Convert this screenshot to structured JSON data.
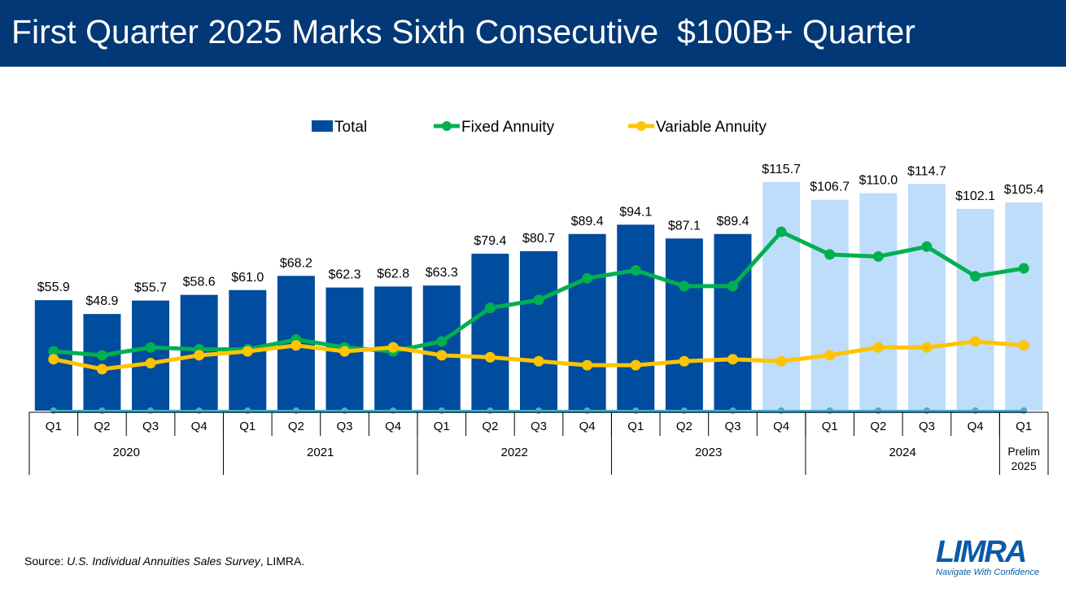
{
  "header": {
    "title": "First Quarter 2025 Marks Sixth Consecutive  $100B+ Quarter"
  },
  "source": {
    "label": "Source: ",
    "title": "U.S. Individual Annuities Sales Survey",
    "suffix": ", LIMRA."
  },
  "logo": {
    "name": "LIMRA",
    "tagline": "Navigate With Confidence"
  },
  "colors": {
    "total_dark": "#004C9E",
    "total_light": "#BDDDFB",
    "fixed": "#00B050",
    "variable": "#FFC400",
    "baseline": "#4BACC6"
  },
  "chart_data": {
    "type": "bar+line",
    "title": "First Quarter 2025 Marks Sixth Consecutive  $100B+ Quarter",
    "legend": [
      "Total",
      "Fixed Annuity",
      "Variable Annuity"
    ],
    "legend_position": "top-center",
    "categories": [
      "Q1",
      "Q2",
      "Q3",
      "Q4",
      "Q1",
      "Q2",
      "Q3",
      "Q4",
      "Q1",
      "Q2",
      "Q3",
      "Q4",
      "Q1",
      "Q2",
      "Q3",
      "Q4",
      "Q1",
      "Q2",
      "Q3",
      "Q4",
      "Q1"
    ],
    "groups": [
      {
        "label": "2020",
        "count": 4
      },
      {
        "label": "2021",
        "count": 4
      },
      {
        "label": "2022",
        "count": 4
      },
      {
        "label": "2023",
        "count": 4
      },
      {
        "label": "2024",
        "count": 4
      },
      {
        "label": "Prelim 2025",
        "count": 1
      }
    ],
    "highlight_from_index": 15,
    "series": [
      {
        "name": "Total",
        "type": "bar",
        "values": [
          55.9,
          48.9,
          55.7,
          58.6,
          61.0,
          68.2,
          62.3,
          62.8,
          63.3,
          79.4,
          80.7,
          89.4,
          94.1,
          87.1,
          89.4,
          115.7,
          106.7,
          110.0,
          114.7,
          102.1,
          105.4
        ],
        "labels": [
          "$55.9",
          "$48.9",
          "$55.7",
          "$58.6",
          "$61.0",
          "$68.2",
          "$62.3",
          "$62.8",
          "$63.3",
          "$79.4",
          "$80.7",
          "$89.4",
          "$94.1",
          "$87.1",
          "$89.4",
          "$115.7",
          "$106.7",
          "$110.0",
          "$114.7",
          "$102.1",
          "$105.4"
        ]
      },
      {
        "name": "Fixed Annuity",
        "type": "line",
        "values": [
          30,
          28,
          32,
          31,
          31,
          36,
          32,
          30,
          35,
          52,
          56,
          67,
          71,
          63,
          63,
          90.5,
          79,
          78,
          83,
          68,
          72
        ]
      },
      {
        "name": "Variable Annuity",
        "type": "line",
        "values": [
          26,
          21,
          24,
          28,
          30,
          33,
          30,
          32,
          28,
          27,
          25,
          23,
          23,
          25,
          26,
          25,
          28,
          32,
          32,
          35,
          33
        ]
      }
    ],
    "ylim": [
      0,
      130
    ],
    "grid": false,
    "xlabel": "",
    "ylabel": ""
  }
}
